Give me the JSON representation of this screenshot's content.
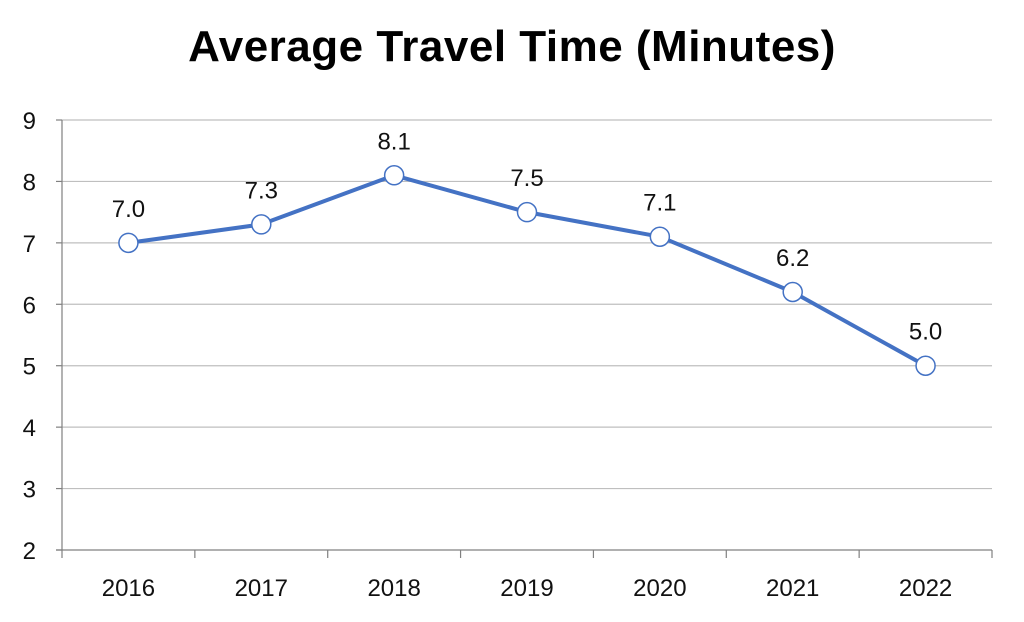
{
  "chart_data": {
    "type": "line",
    "title": "Average Travel Time (Minutes)",
    "xlabel": "",
    "ylabel": "",
    "categories": [
      "2016",
      "2017",
      "2018",
      "2019",
      "2020",
      "2021",
      "2022"
    ],
    "series": [
      {
        "values": [
          7.0,
          7.3,
          8.1,
          7.5,
          7.1,
          6.2,
          5.0
        ],
        "data_labels": [
          "7.0",
          "7.3",
          "8.1",
          "7.5",
          "7.1",
          "6.2",
          "5.0"
        ]
      }
    ],
    "ylim": [
      2,
      9
    ],
    "yticks": [
      2,
      3,
      4,
      5,
      6,
      7,
      8,
      9
    ],
    "grid": true,
    "legend": "none",
    "colors": {
      "line": "#4472C4",
      "marker_fill": "#ffffff",
      "marker_stroke": "#4472C4",
      "grid": "#bfbfbf",
      "axis": "#808080"
    }
  }
}
